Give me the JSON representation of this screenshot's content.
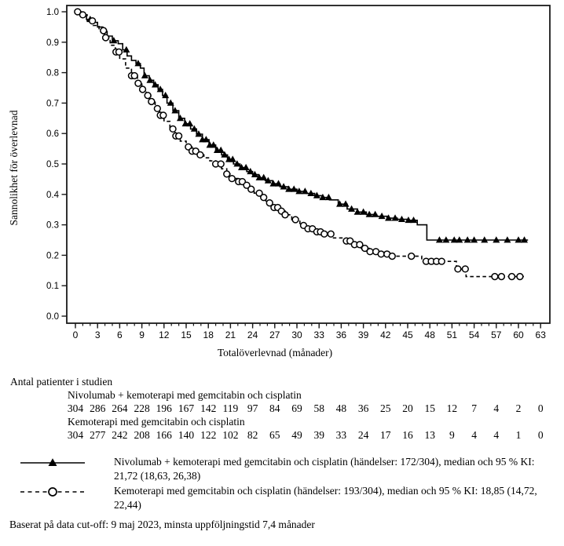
{
  "figure": {
    "footer": "Baserat på data cut-off: 9 maj 2023, minsta uppföljningstid 7,4 månader"
  },
  "risk_table": {
    "title": "Antal patienter i studien",
    "groups": [
      {
        "label": "Nivolumab + kemoterapi med gemcitabin och cisplatin",
        "counts": [
          304,
          286,
          264,
          228,
          196,
          167,
          142,
          119,
          97,
          84,
          69,
          58,
          48,
          36,
          25,
          20,
          15,
          12,
          7,
          4,
          2,
          0
        ]
      },
      {
        "label": "Kemoterapi med gemcitabin och cisplatin",
        "counts": [
          304,
          277,
          242,
          208,
          166,
          140,
          122,
          102,
          82,
          65,
          49,
          39,
          33,
          24,
          17,
          16,
          13,
          9,
          4,
          4,
          1,
          0
        ]
      }
    ]
  },
  "legend": {
    "items": [
      {
        "marker": "solid-line-filled-triangle",
        "text": "Nivolumab + kemoterapi med gemcitabin och cisplatin (händelser: 172/304), median och 95 % KI: 21,72 (18,63, 26,38)"
      },
      {
        "marker": "dashed-line-open-circle",
        "text": "Kemoterapi med gemcitabin och cisplatin (händelser: 193/304), median och 95 % KI: 18,85 (14,72, 22,44)"
      }
    ]
  },
  "chart_data": {
    "type": "line",
    "subtype": "kaplan-meier-step",
    "title": "",
    "xlabel": "Totalöverlevnad (månader)",
    "ylabel": "Sannolikhet för överlevnad",
    "xlim": [
      0,
      63
    ],
    "ylim": [
      0.0,
      1.0
    ],
    "xticks": [
      0,
      3,
      6,
      9,
      12,
      15,
      18,
      21,
      24,
      27,
      30,
      33,
      36,
      39,
      42,
      45,
      48,
      51,
      54,
      57,
      60,
      63
    ],
    "x_minor_step": 1,
    "yticks": [
      0.0,
      0.1,
      0.2,
      0.3,
      0.4,
      0.5,
      0.6,
      0.7,
      0.8,
      0.9,
      1.0
    ],
    "grid": false,
    "legend_position": "below",
    "colors": {
      "line": "#000000",
      "background": "#ffffff"
    },
    "series": [
      {
        "name": "Nivolumab + kemoterapi med gemcitabin och cisplatin",
        "line_style": "solid",
        "marker": "filled-triangle",
        "events": "172/304",
        "median": "21,72",
        "ci95": "(18,63, 26,38)",
        "steps": [
          [
            0,
            1.0
          ],
          [
            0.8,
            0.99
          ],
          [
            1.5,
            0.975
          ],
          [
            2.2,
            0.965
          ],
          [
            3.0,
            0.95
          ],
          [
            3.7,
            0.935
          ],
          [
            4.3,
            0.92
          ],
          [
            5.0,
            0.905
          ],
          [
            5.8,
            0.895
          ],
          [
            6.4,
            0.875
          ],
          [
            7.0,
            0.855
          ],
          [
            7.6,
            0.84
          ],
          [
            8.2,
            0.83
          ],
          [
            8.8,
            0.815
          ],
          [
            9.3,
            0.79
          ],
          [
            10.0,
            0.775
          ],
          [
            10.6,
            0.76
          ],
          [
            11.2,
            0.745
          ],
          [
            11.8,
            0.725
          ],
          [
            12.4,
            0.7
          ],
          [
            13.2,
            0.675
          ],
          [
            14.0,
            0.65
          ],
          [
            14.8,
            0.632
          ],
          [
            15.6,
            0.615
          ],
          [
            16.4,
            0.598
          ],
          [
            17.2,
            0.58
          ],
          [
            18.1,
            0.562
          ],
          [
            19.0,
            0.545
          ],
          [
            19.8,
            0.53
          ],
          [
            20.6,
            0.515
          ],
          [
            21.4,
            0.5
          ],
          [
            22.3,
            0.488
          ],
          [
            23.2,
            0.475
          ],
          [
            24.0,
            0.465
          ],
          [
            24.8,
            0.455
          ],
          [
            25.7,
            0.445
          ],
          [
            26.7,
            0.435
          ],
          [
            27.7,
            0.425
          ],
          [
            28.8,
            0.417
          ],
          [
            30.0,
            0.41
          ],
          [
            31.3,
            0.403
          ],
          [
            32.4,
            0.396
          ],
          [
            33.4,
            0.39
          ],
          [
            34.4,
            0.382
          ],
          [
            35.6,
            0.368
          ],
          [
            36.8,
            0.352
          ],
          [
            38.2,
            0.342
          ],
          [
            39.4,
            0.334
          ],
          [
            40.8,
            0.328
          ],
          [
            42.2,
            0.322
          ],
          [
            43.6,
            0.318
          ],
          [
            45.0,
            0.315
          ],
          [
            46.3,
            0.3
          ],
          [
            47.6,
            0.25
          ],
          [
            61.3,
            0.25
          ]
        ],
        "censor_times": [
          2.0,
          5.2,
          6.9,
          8.5,
          9.4,
          10.1,
          10.8,
          11.5,
          12.2,
          12.9,
          13.5,
          14.2,
          14.9,
          15.5,
          16.1,
          16.7,
          17.2,
          17.7,
          18.2,
          18.7,
          19.2,
          19.7,
          20.2,
          20.8,
          21.3,
          21.9,
          22.5,
          23.1,
          23.7,
          24.3,
          24.9,
          25.5,
          26.1,
          26.8,
          27.5,
          28.2,
          28.9,
          29.6,
          30.3,
          31.1,
          31.9,
          32.7,
          33.5,
          34.3,
          35.8,
          36.6,
          37.4,
          38.2,
          39.0,
          39.8,
          40.6,
          41.5,
          42.4,
          43.3,
          44.2,
          45.1,
          45.8,
          49.3,
          50.2,
          51.3,
          52.0,
          53.1,
          54.0,
          55.4,
          57.0,
          58.5,
          60.0,
          60.8
        ]
      },
      {
        "name": "Kemoterapi med gemcitabin och cisplatin",
        "line_style": "dashed",
        "marker": "open-circle",
        "events": "193/304",
        "median": "18,85",
        "ci95": "(14,72, 22,44)",
        "steps": [
          [
            0,
            1.0
          ],
          [
            0.7,
            0.99
          ],
          [
            1.6,
            0.97
          ],
          [
            2.4,
            0.955
          ],
          [
            3.2,
            0.938
          ],
          [
            3.9,
            0.915
          ],
          [
            4.7,
            0.89
          ],
          [
            5.4,
            0.868
          ],
          [
            6.0,
            0.845
          ],
          [
            6.8,
            0.815
          ],
          [
            7.6,
            0.79
          ],
          [
            8.4,
            0.765
          ],
          [
            9.0,
            0.745
          ],
          [
            9.6,
            0.725
          ],
          [
            10.2,
            0.705
          ],
          [
            10.8,
            0.682
          ],
          [
            11.4,
            0.66
          ],
          [
            12.0,
            0.64
          ],
          [
            12.8,
            0.615
          ],
          [
            13.5,
            0.592
          ],
          [
            14.2,
            0.575
          ],
          [
            15.0,
            0.556
          ],
          [
            15.8,
            0.542
          ],
          [
            16.6,
            0.53
          ],
          [
            17.4,
            0.52
          ],
          [
            18.2,
            0.51
          ],
          [
            19.0,
            0.5
          ],
          [
            19.8,
            0.484
          ],
          [
            20.5,
            0.467
          ],
          [
            21.2,
            0.452
          ],
          [
            22.0,
            0.442
          ],
          [
            22.8,
            0.43
          ],
          [
            23.5,
            0.417
          ],
          [
            24.2,
            0.404
          ],
          [
            25.0,
            0.39
          ],
          [
            25.8,
            0.372
          ],
          [
            26.6,
            0.357
          ],
          [
            27.5,
            0.345
          ],
          [
            28.4,
            0.333
          ],
          [
            29.3,
            0.317
          ],
          [
            30.4,
            0.298
          ],
          [
            31.4,
            0.287
          ],
          [
            32.3,
            0.277
          ],
          [
            33.3,
            0.27
          ],
          [
            34.7,
            0.257
          ],
          [
            36.3,
            0.247
          ],
          [
            37.6,
            0.235
          ],
          [
            38.7,
            0.223
          ],
          [
            39.8,
            0.212
          ],
          [
            41.2,
            0.204
          ],
          [
            42.8,
            0.197
          ],
          [
            46.9,
            0.18
          ],
          [
            51.6,
            0.155
          ],
          [
            52.9,
            0.13
          ],
          [
            61.0,
            0.13
          ]
        ],
        "censor_times": [
          0.3,
          1.0,
          2.3,
          3.8,
          4.1,
          5.5,
          5.9,
          7.6,
          8.0,
          8.5,
          9.1,
          9.8,
          10.3,
          11.1,
          11.5,
          11.9,
          13.2,
          13.6,
          14.0,
          15.3,
          15.8,
          16.3,
          16.9,
          19.0,
          19.7,
          20.5,
          21.2,
          22.1,
          22.6,
          23.2,
          23.8,
          24.9,
          25.5,
          26.3,
          26.9,
          27.4,
          27.9,
          28.4,
          29.8,
          30.9,
          31.5,
          32.1,
          32.7,
          33.2,
          33.7,
          34.6,
          36.7,
          37.2,
          37.8,
          38.5,
          39.2,
          39.9,
          40.7,
          41.4,
          42.2,
          42.9,
          45.5,
          47.5,
          48.2,
          48.9,
          49.6,
          51.8,
          52.8,
          56.8,
          57.7,
          59.1,
          60.2
        ]
      }
    ]
  }
}
